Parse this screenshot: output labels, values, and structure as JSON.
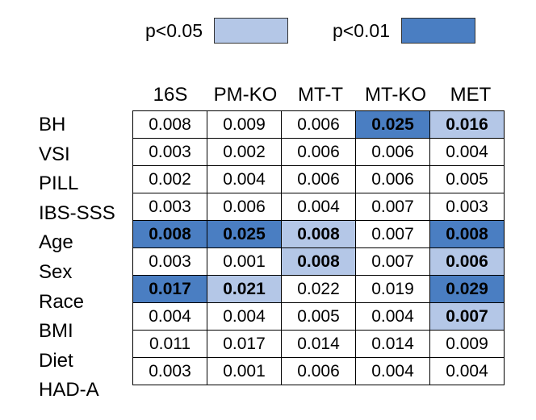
{
  "legend": [
    {
      "label": "p<0.05",
      "color": "#b4c7e7"
    },
    {
      "label": "p<0.01",
      "color": "#4a7ec2"
    }
  ],
  "chart_data": {
    "type": "heatmap",
    "title": "",
    "columns": [
      "16S",
      "PM-KO",
      "MT-T",
      "MT-KO",
      "MET"
    ],
    "rows": [
      "BH",
      "VSI",
      "PILL",
      "IBS-SSS",
      "Age",
      "Sex",
      "Race",
      "BMI",
      "Diet",
      "HAD-A"
    ],
    "values": [
      [
        "0.008",
        "0.009",
        "0.006",
        "0.025",
        "0.016"
      ],
      [
        "0.003",
        "0.002",
        "0.006",
        "0.006",
        "0.004"
      ],
      [
        "0.002",
        "0.004",
        "0.006",
        "0.006",
        "0.005"
      ],
      [
        "0.003",
        "0.006",
        "0.004",
        "0.007",
        "0.003"
      ],
      [
        "0.008",
        "0.025",
        "0.008",
        "0.007",
        "0.008"
      ],
      [
        "0.003",
        "0.001",
        "0.008",
        "0.007",
        "0.006"
      ],
      [
        "0.017",
        "0.021",
        "0.022",
        "0.019",
        "0.029"
      ],
      [
        "0.004",
        "0.004",
        "0.005",
        "0.004",
        "0.007"
      ],
      [
        "0.011",
        "0.017",
        "0.014",
        "0.014",
        "0.009"
      ],
      [
        "0.003",
        "0.001",
        "0.006",
        "0.004",
        "0.004"
      ]
    ],
    "significance": [
      [
        "",
        "",
        "",
        "p<0.01",
        "p<0.05"
      ],
      [
        "",
        "",
        "",
        "",
        ""
      ],
      [
        "",
        "",
        "",
        "",
        ""
      ],
      [
        "",
        "",
        "",
        "",
        ""
      ],
      [
        "p<0.01",
        "p<0.01",
        "p<0.05",
        "",
        "p<0.01"
      ],
      [
        "",
        "",
        "p<0.05",
        "",
        "p<0.05"
      ],
      [
        "p<0.01",
        "p<0.05",
        "",
        "",
        "p<0.01"
      ],
      [
        "",
        "",
        "",
        "",
        "p<0.05"
      ],
      [
        "",
        "",
        "",
        "",
        ""
      ],
      [
        "",
        "",
        "",
        "",
        ""
      ]
    ]
  }
}
